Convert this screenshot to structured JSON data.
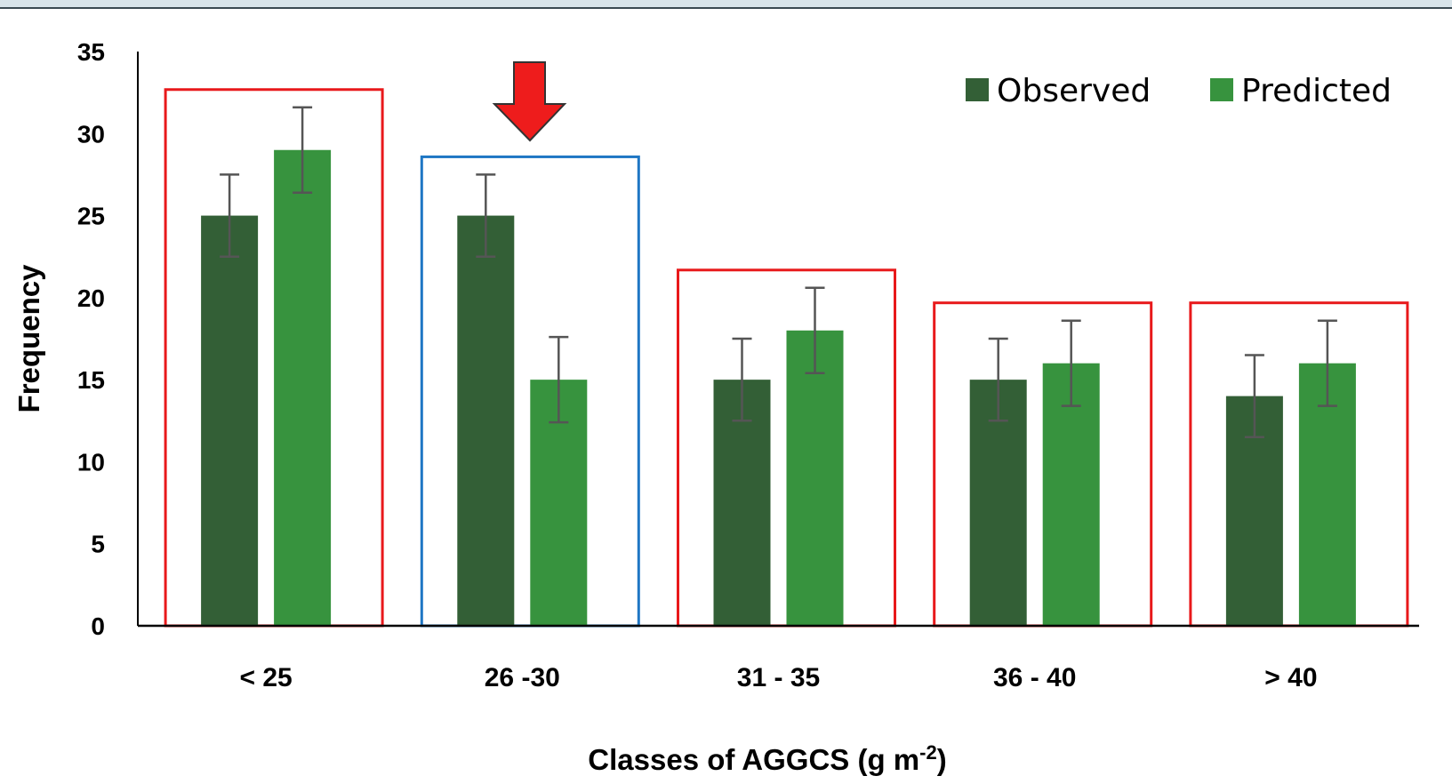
{
  "chart_data": {
    "type": "bar",
    "title": "",
    "categories": [
      "< 25",
      "26 -30",
      "31 - 35",
      "36 - 40",
      "> 40"
    ],
    "series": [
      {
        "name": "Observed",
        "color": "#335f36",
        "values": [
          25,
          25,
          15,
          15,
          14
        ],
        "errors": [
          2.5,
          2.5,
          2.5,
          2.5,
          2.5
        ]
      },
      {
        "name": "Predicted",
        "color": "#37933e",
        "values": [
          29,
          15,
          18,
          16,
          16
        ],
        "errors": [
          2.6,
          2.6,
          2.6,
          2.6,
          2.6
        ]
      }
    ],
    "xlabel": "Classes of AGGCS (g m",
    "xlabel_sup": "-2",
    "xlabel_end": ")",
    "ylabel": "Frequency",
    "ylim": [
      0,
      35
    ],
    "yticks": [
      "0",
      "5",
      "10",
      "15",
      "20",
      "25",
      "30",
      "35"
    ],
    "grid": false,
    "legend": "top-right",
    "highlights": [
      {
        "category": "< 25",
        "color": "#e8191b"
      },
      {
        "category": "26 -30",
        "color": "#1f77c4",
        "arrow": "red-down-arrow"
      },
      {
        "category": "31 - 35",
        "color": "#e8191b"
      },
      {
        "category": "36 - 40",
        "color": "#e8191b"
      },
      {
        "category": "> 40",
        "color": "#e8191b"
      }
    ]
  }
}
